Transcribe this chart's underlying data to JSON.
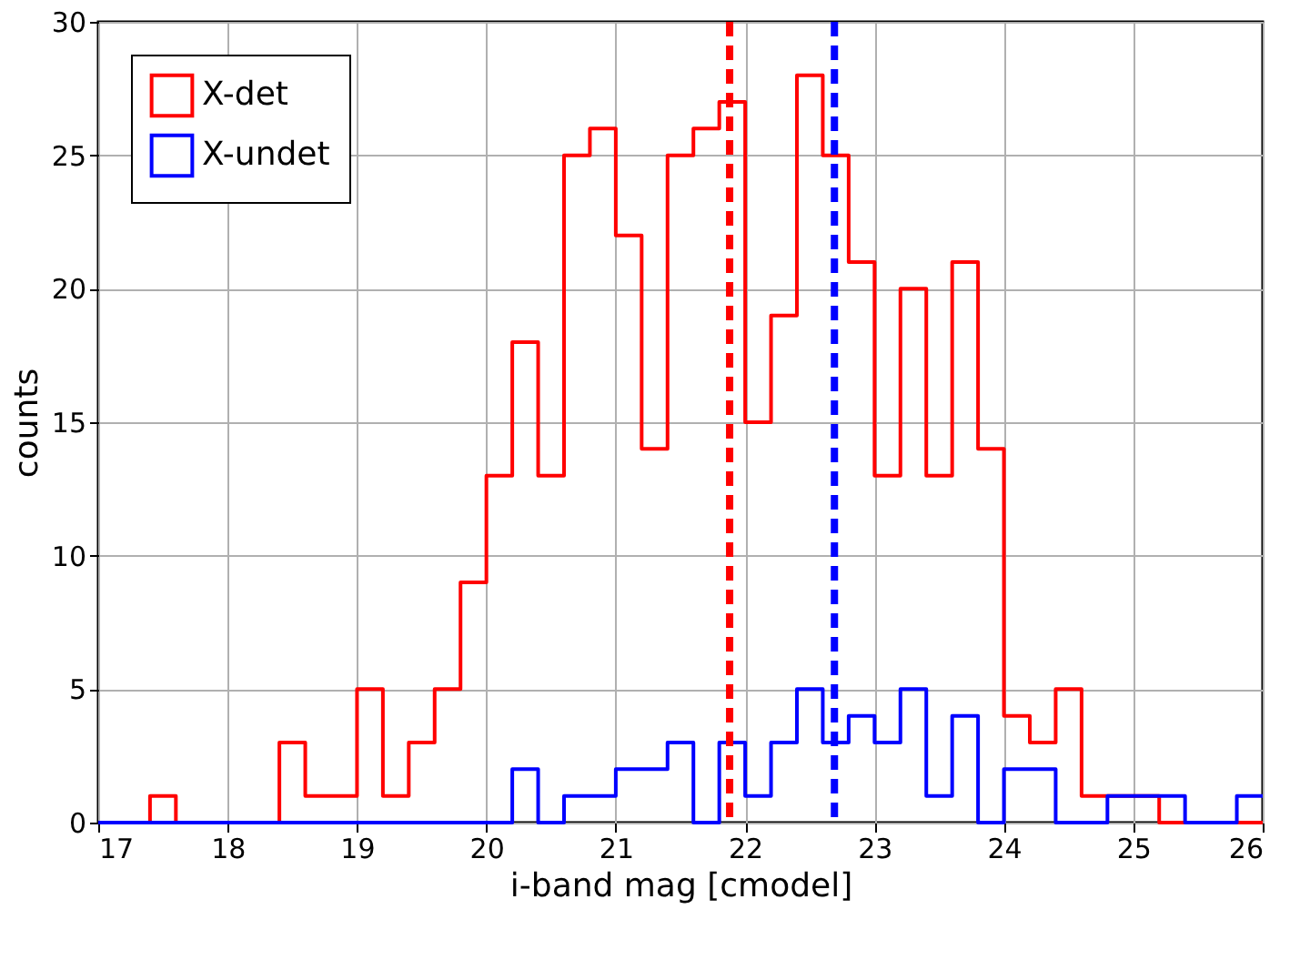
{
  "chart_data": {
    "type": "histogram",
    "xlabel": "i-band mag [cmodel]",
    "ylabel": "counts",
    "bins": [
      17.0,
      17.2,
      17.4,
      17.6,
      17.8,
      18.0,
      18.2,
      18.4,
      18.6,
      18.8,
      19.0,
      19.2,
      19.4,
      19.6,
      19.8,
      20.0,
      20.2,
      20.4,
      20.6,
      20.8,
      21.0,
      21.2,
      21.4,
      21.6,
      21.8,
      22.0,
      22.2,
      22.4,
      22.6,
      22.8,
      23.0,
      23.2,
      23.4,
      23.6,
      23.8,
      24.0,
      24.2,
      24.4,
      24.6,
      24.8,
      25.0,
      25.2,
      25.4,
      25.6,
      25.8,
      26.0
    ],
    "series": [
      {
        "name": "X-det",
        "color": "#ff0000",
        "values": [
          0,
          0,
          1,
          0,
          0,
          0,
          0,
          3,
          1,
          1,
          5,
          1,
          3,
          5,
          9,
          13,
          18,
          13,
          25,
          26,
          22,
          14,
          25,
          26,
          27,
          15,
          19,
          28,
          25,
          21,
          13,
          20,
          13,
          21,
          14,
          4,
          3,
          5,
          1,
          1,
          1,
          0,
          0,
          0,
          0
        ]
      },
      {
        "name": "X-undet",
        "color": "#0000ff",
        "values": [
          0,
          0,
          0,
          0,
          0,
          0,
          0,
          0,
          0,
          0,
          0,
          0,
          0,
          0,
          0,
          0,
          2,
          0,
          1,
          1,
          2,
          2,
          3,
          0,
          3,
          1,
          3,
          5,
          3,
          4,
          3,
          5,
          1,
          4,
          0,
          2,
          2,
          0,
          0,
          1,
          1,
          1,
          0,
          0,
          1
        ]
      }
    ],
    "ref_lines": [
      {
        "axis": "x",
        "value": 21.88,
        "color": "#ff0000",
        "line_style": "dashed"
      },
      {
        "axis": "x",
        "value": 22.69,
        "color": "#0000ff",
        "line_style": "dashed"
      }
    ],
    "xlim": [
      17,
      26
    ],
    "xticks": [
      17,
      18,
      19,
      20,
      21,
      22,
      23,
      24,
      25,
      26
    ],
    "ylim": [
      0,
      30
    ],
    "yticks": [
      0,
      5,
      10,
      15,
      20,
      25,
      30
    ],
    "grid": true,
    "legend": "top left"
  }
}
